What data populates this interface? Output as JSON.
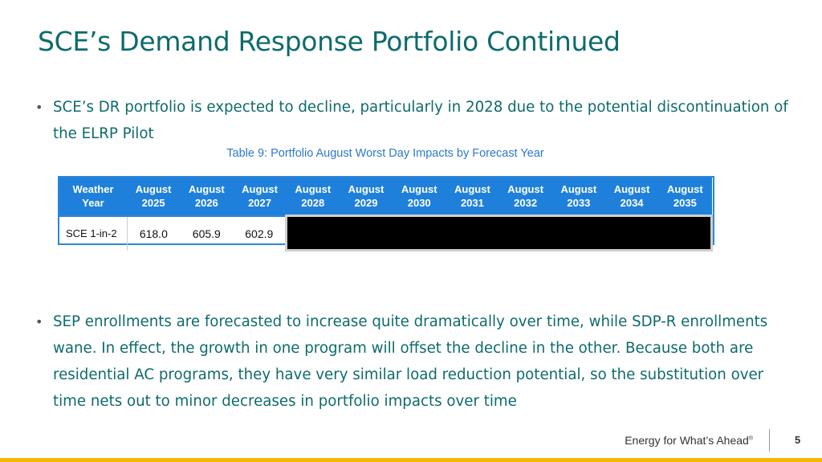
{
  "title": "SCE’s Demand Response Portfolio Continued",
  "bullets": [
    "SCE’s DR portfolio is expected to decline, particularly in 2028 due to the potential discontinuation of the ELRP Pilot",
    "SEP enrollments are forecasted to increase quite dramatically over time, while SDP-R enrollments wane. In effect, the growth in one program will offset the decline in the other. Because both are residential AC programs, they have very similar load reduction potential, so the substitution over time nets out to minor decreases in portfolio impacts over time"
  ],
  "table": {
    "caption": "Table 9: Portfolio August Worst Day Impacts by Forecast Year",
    "header_first": [
      "Weather",
      "Year"
    ],
    "columns": [
      [
        "August",
        "2025"
      ],
      [
        "August",
        "2026"
      ],
      [
        "August",
        "2027"
      ],
      [
        "August",
        "2028"
      ],
      [
        "August",
        "2029"
      ],
      [
        "August",
        "2030"
      ],
      [
        "August",
        "2031"
      ],
      [
        "August",
        "2032"
      ],
      [
        "August",
        "2033"
      ],
      [
        "August",
        "2034"
      ],
      [
        "August",
        "2035"
      ]
    ],
    "row_label": "SCE 1-in-2",
    "values": [
      "618.0",
      "605.9",
      "602.9"
    ],
    "redacted_columns": 8
  },
  "footer": {
    "tagline": "Energy for What’s Ahead",
    "trademark": "®",
    "page_number": "5"
  },
  "colors": {
    "title": "#0e6b6b",
    "table_header": "#1f80db",
    "accent_bar": "#f2b800"
  }
}
